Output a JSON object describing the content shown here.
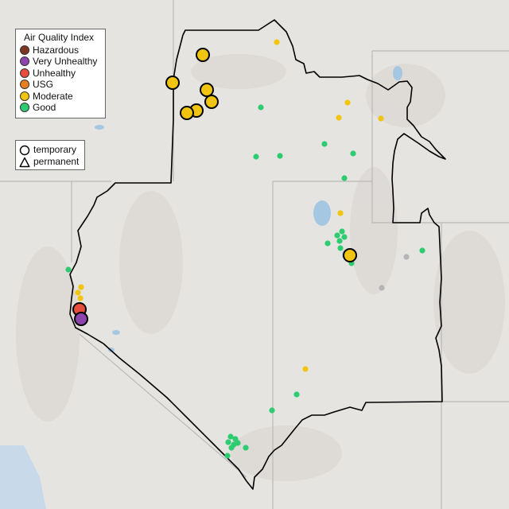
{
  "legend": {
    "title": "Air Quality Index",
    "categories": [
      {
        "label": "Hazardous",
        "color": "#7e3524"
      },
      {
        "label": "Very Unhealthy",
        "color": "#8e44ad"
      },
      {
        "label": "Unhealthy",
        "color": "#e74c3c"
      },
      {
        "label": "USG",
        "color": "#e67e22"
      },
      {
        "label": "Moderate",
        "color": "#f1c40f"
      },
      {
        "label": "Good",
        "color": "#2ecc71"
      }
    ],
    "site_types": [
      {
        "label": "temporary",
        "icon": "circle-icon"
      },
      {
        "label": "permanent",
        "icon": "triangle-icon"
      }
    ]
  },
  "monitors": [
    {
      "category": "Moderate",
      "type": "temporary",
      "pos": [
        255,
        69
      ]
    },
    {
      "category": "Moderate",
      "type": "temporary",
      "pos": [
        217,
        104
      ]
    },
    {
      "category": "Moderate",
      "type": "temporary",
      "pos": [
        260,
        113
      ]
    },
    {
      "category": "Moderate",
      "type": "temporary",
      "pos": [
        266,
        128
      ]
    },
    {
      "category": "Moderate",
      "type": "temporary",
      "pos": [
        247,
        139
      ]
    },
    {
      "category": "Moderate",
      "type": "temporary",
      "pos": [
        235,
        142
      ]
    },
    {
      "category": "Moderate",
      "type": "temporary",
      "pos": [
        440,
        321
      ]
    },
    {
      "category": "Unhealthy",
      "type": "temporary",
      "pos": [
        100,
        389
      ]
    },
    {
      "category": "Very Unhealthy",
      "type": "temporary",
      "pos": [
        102,
        401
      ]
    },
    {
      "category": "Moderate",
      "type": "permanent",
      "pos": [
        348,
        53
      ]
    },
    {
      "category": "Moderate",
      "type": "permanent",
      "pos": [
        437,
        129
      ]
    },
    {
      "category": "Moderate",
      "type": "permanent",
      "pos": [
        426,
        148
      ]
    },
    {
      "category": "Moderate",
      "type": "permanent",
      "pos": [
        479,
        149
      ]
    },
    {
      "category": "Moderate",
      "type": "permanent",
      "pos": [
        428,
        268
      ]
    },
    {
      "category": "Moderate",
      "type": "permanent",
      "pos": [
        102,
        361
      ]
    },
    {
      "category": "Moderate",
      "type": "permanent",
      "pos": [
        98,
        368
      ]
    },
    {
      "category": "Moderate",
      "type": "permanent",
      "pos": [
        101,
        375
      ]
    },
    {
      "category": "Moderate",
      "type": "permanent",
      "pos": [
        384,
        464
      ]
    },
    {
      "category": "Good",
      "type": "permanent",
      "pos": [
        328,
        135
      ]
    },
    {
      "category": "Good",
      "type": "permanent",
      "pos": [
        408,
        181
      ]
    },
    {
      "category": "Good",
      "type": "permanent",
      "pos": [
        444,
        193
      ]
    },
    {
      "category": "Good",
      "type": "permanent",
      "pos": [
        322,
        197
      ]
    },
    {
      "category": "Good",
      "type": "permanent",
      "pos": [
        352,
        196
      ]
    },
    {
      "category": "Good",
      "type": "permanent",
      "pos": [
        433,
        224
      ]
    },
    {
      "category": "Good",
      "type": "permanent",
      "pos": [
        430,
        291
      ]
    },
    {
      "category": "Good",
      "type": "permanent",
      "pos": [
        424,
        296
      ]
    },
    {
      "category": "Good",
      "type": "permanent",
      "pos": [
        433,
        298
      ]
    },
    {
      "category": "Good",
      "type": "permanent",
      "pos": [
        427,
        303
      ]
    },
    {
      "category": "Good",
      "type": "permanent",
      "pos": [
        412,
        306
      ]
    },
    {
      "category": "Good",
      "type": "permanent",
      "pos": [
        428,
        312
      ]
    },
    {
      "category": "Good",
      "type": "permanent",
      "pos": [
        531,
        315
      ]
    },
    {
      "category": "Good",
      "type": "permanent",
      "pos": [
        442,
        331
      ]
    },
    {
      "category": "Good",
      "type": "permanent",
      "pos": [
        86,
        339
      ]
    },
    {
      "category": "Good",
      "type": "permanent",
      "pos": [
        373,
        496
      ]
    },
    {
      "category": "Good",
      "type": "permanent",
      "pos": [
        342,
        516
      ]
    },
    {
      "category": "Good",
      "type": "permanent",
      "pos": [
        290,
        549
      ]
    },
    {
      "category": "Good",
      "type": "permanent",
      "pos": [
        296,
        552
      ]
    },
    {
      "category": "Good",
      "type": "permanent",
      "pos": [
        287,
        556
      ]
    },
    {
      "category": "Good",
      "type": "permanent",
      "pos": [
        294,
        559
      ]
    },
    {
      "category": "Good",
      "type": "permanent",
      "pos": [
        299,
        557
      ]
    },
    {
      "category": "Good",
      "type": "permanent",
      "pos": [
        291,
        563
      ]
    },
    {
      "category": "Good",
      "type": "permanent",
      "pos": [
        309,
        563
      ]
    },
    {
      "category": "Good",
      "type": "permanent",
      "pos": [
        286,
        573
      ]
    },
    {
      "category": "No data",
      "type": "permanent",
      "pos": [
        511,
        323
      ]
    },
    {
      "category": "No data",
      "type": "permanent",
      "pos": [
        480,
        362
      ]
    }
  ],
  "colors": {
    "land": "#e6e4e1",
    "state_line": "#b9b9b9",
    "region_outline": "#000000",
    "water": "#a6c7e2",
    "no_data": "#b5b5b5"
  }
}
